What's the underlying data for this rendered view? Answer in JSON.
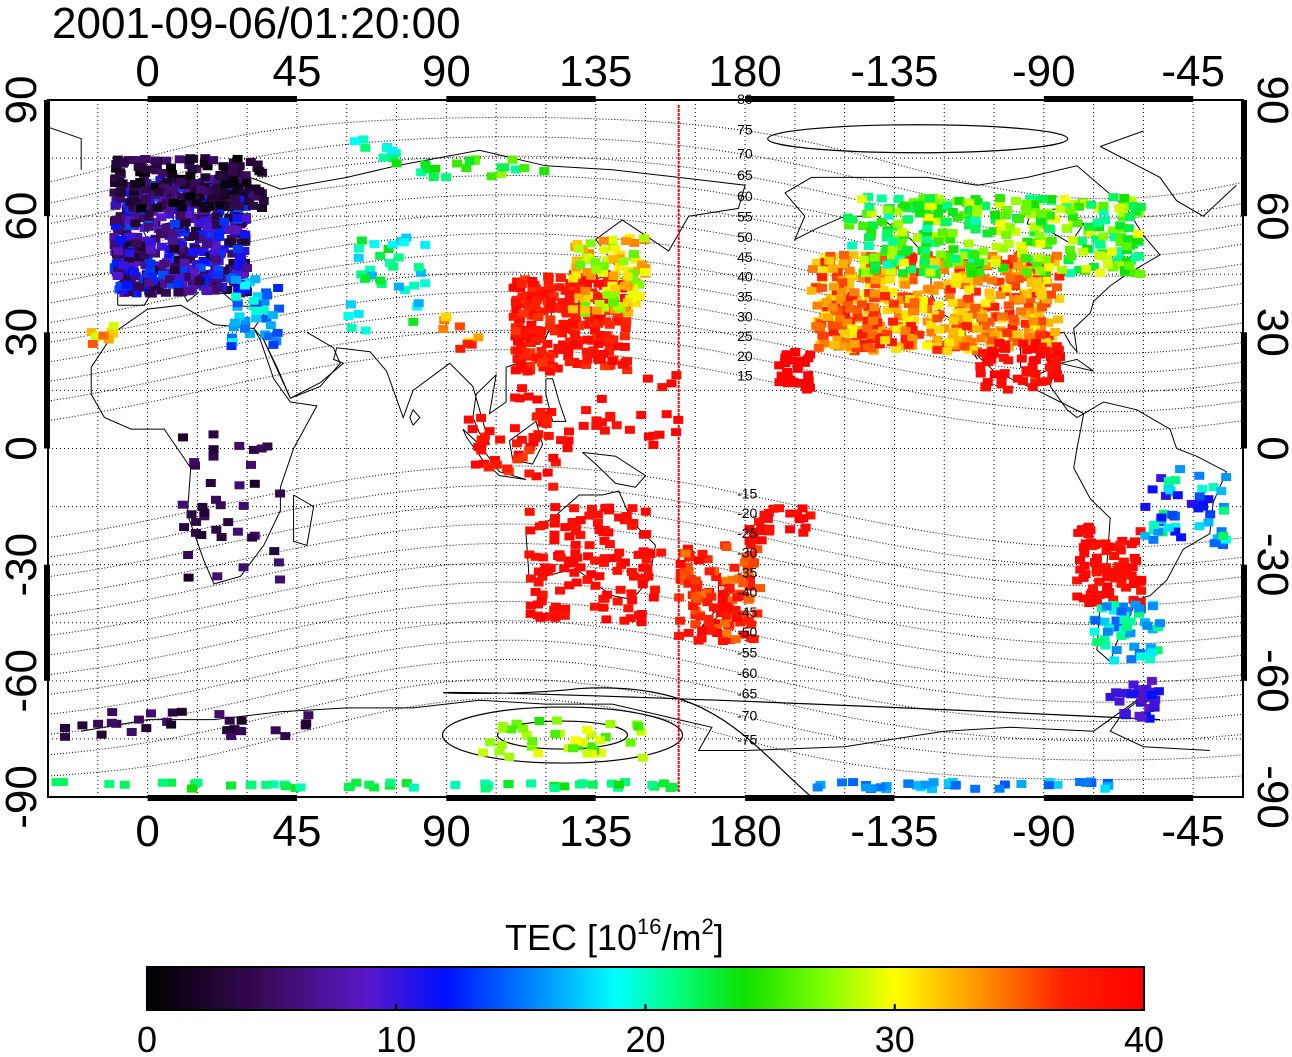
{
  "timestamp": "2001-09-06/01:20:00",
  "map": {
    "lon_ticks": [
      "0",
      "45",
      "90",
      "135",
      "180",
      "-135",
      "-90",
      "-45"
    ],
    "lat_ticks": [
      "90",
      "60",
      "30",
      "0",
      "-30",
      "-60",
      "-90"
    ],
    "terminator_lon": 160,
    "contour_labels": [
      "80",
      "75",
      "70",
      "65",
      "60",
      "55",
      "50",
      "45",
      "40",
      "35",
      "30",
      "25",
      "20",
      "15",
      "-15",
      "-20",
      "-25",
      "-30",
      "-35",
      "-40",
      "-45",
      "-50",
      "-55",
      "-60",
      "-65",
      "-70",
      "-75"
    ]
  },
  "colorbar": {
    "title_main": "TEC  [10",
    "title_exp1": "16",
    "title_mid": "/m",
    "title_exp2": "2",
    "title_end": "]",
    "tick_labels": [
      "0",
      "10",
      "20",
      "30",
      "40"
    ],
    "range": [
      0,
      40
    ]
  }
}
